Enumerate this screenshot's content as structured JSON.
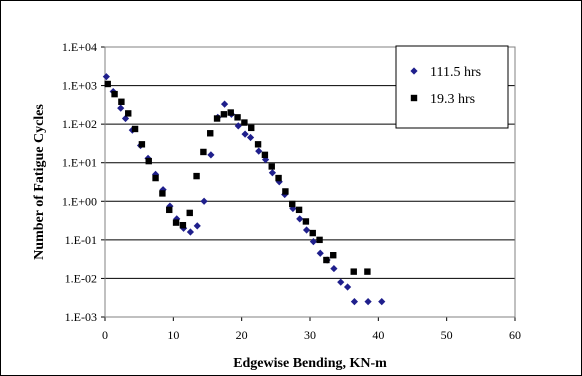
{
  "chart_data": {
    "type": "scatter",
    "xlabel": "Edgewise Bending, KN-m",
    "ylabel": "Number of Fatigue Cycles",
    "xlim": [
      0,
      60
    ],
    "ylim": [
      0.001,
      10000
    ],
    "yscale": "log",
    "x_ticks": [
      0,
      10,
      20,
      30,
      40,
      50,
      60
    ],
    "x_tick_labels": [
      "0",
      "10",
      "20",
      "30",
      "40",
      "50",
      "60"
    ],
    "y_ticks": [
      0.001,
      0.01,
      0.1,
      1,
      10,
      100,
      1000,
      10000
    ],
    "y_tick_labels": [
      "1.E-03",
      "1.E-02",
      "1.E-01",
      "1.E+00",
      "1.E+01",
      "1.E+02",
      "1.E+03",
      "1.E+04"
    ],
    "grid": "horizontal",
    "legend_position": "top-right",
    "series": [
      {
        "name": "111.5 hrs",
        "marker": "diamond",
        "color": "#1f1f8c",
        "points": [
          [
            0.2,
            1700
          ],
          [
            1.2,
            700
          ],
          [
            2.3,
            260
          ],
          [
            3.0,
            140
          ],
          [
            4.0,
            70
          ],
          [
            5.2,
            28
          ],
          [
            6.3,
            13
          ],
          [
            7.4,
            5
          ],
          [
            8.5,
            2
          ],
          [
            9.5,
            0.75
          ],
          [
            10.5,
            0.35
          ],
          [
            11.5,
            0.2
          ],
          [
            12.5,
            0.16
          ],
          [
            13.5,
            0.23
          ],
          [
            14.5,
            1.0
          ],
          [
            15.5,
            16
          ],
          [
            16.5,
            150
          ],
          [
            17.5,
            330
          ],
          [
            18.5,
            180
          ],
          [
            19.5,
            90
          ],
          [
            20.5,
            55
          ],
          [
            21.3,
            45
          ],
          [
            22.5,
            20
          ],
          [
            23.5,
            12
          ],
          [
            24.5,
            5.5
          ],
          [
            25.5,
            3.2
          ],
          [
            26.3,
            1.5
          ],
          [
            27.5,
            0.65
          ],
          [
            28.5,
            0.35
          ],
          [
            29.5,
            0.18
          ],
          [
            30.5,
            0.09
          ],
          [
            31.5,
            0.045
          ],
          [
            32.5,
            0.03
          ],
          [
            33.5,
            0.018
          ],
          [
            34.5,
            0.008
          ],
          [
            35.5,
            0.006
          ],
          [
            36.5,
            0.0025
          ],
          [
            38.5,
            0.0025
          ],
          [
            40.5,
            0.0025
          ]
        ]
      },
      {
        "name": "19.3 hrs",
        "marker": "square",
        "color": "#000000",
        "points": [
          [
            0.4,
            1100
          ],
          [
            1.4,
            600
          ],
          [
            2.4,
            380
          ],
          [
            3.4,
            190
          ],
          [
            4.4,
            75
          ],
          [
            5.4,
            30
          ],
          [
            6.4,
            11
          ],
          [
            7.4,
            4
          ],
          [
            8.4,
            1.6
          ],
          [
            9.4,
            0.6
          ],
          [
            10.4,
            0.28
          ],
          [
            11.4,
            0.24
          ],
          [
            12.4,
            0.5
          ],
          [
            13.4,
            4.5
          ],
          [
            14.4,
            19
          ],
          [
            15.4,
            58
          ],
          [
            16.4,
            140
          ],
          [
            17.4,
            180
          ],
          [
            18.4,
            200
          ],
          [
            19.4,
            150
          ],
          [
            20.4,
            110
          ],
          [
            21.4,
            80
          ],
          [
            22.4,
            30
          ],
          [
            23.4,
            16
          ],
          [
            24.4,
            8
          ],
          [
            25.4,
            4
          ],
          [
            26.4,
            1.8
          ],
          [
            27.4,
            0.85
          ],
          [
            28.4,
            0.6
          ],
          [
            29.4,
            0.3
          ],
          [
            30.4,
            0.15
          ],
          [
            31.4,
            0.1
          ],
          [
            32.4,
            0.03
          ],
          [
            33.4,
            0.04
          ],
          [
            36.4,
            0.015
          ],
          [
            38.4,
            0.015
          ]
        ]
      }
    ]
  }
}
